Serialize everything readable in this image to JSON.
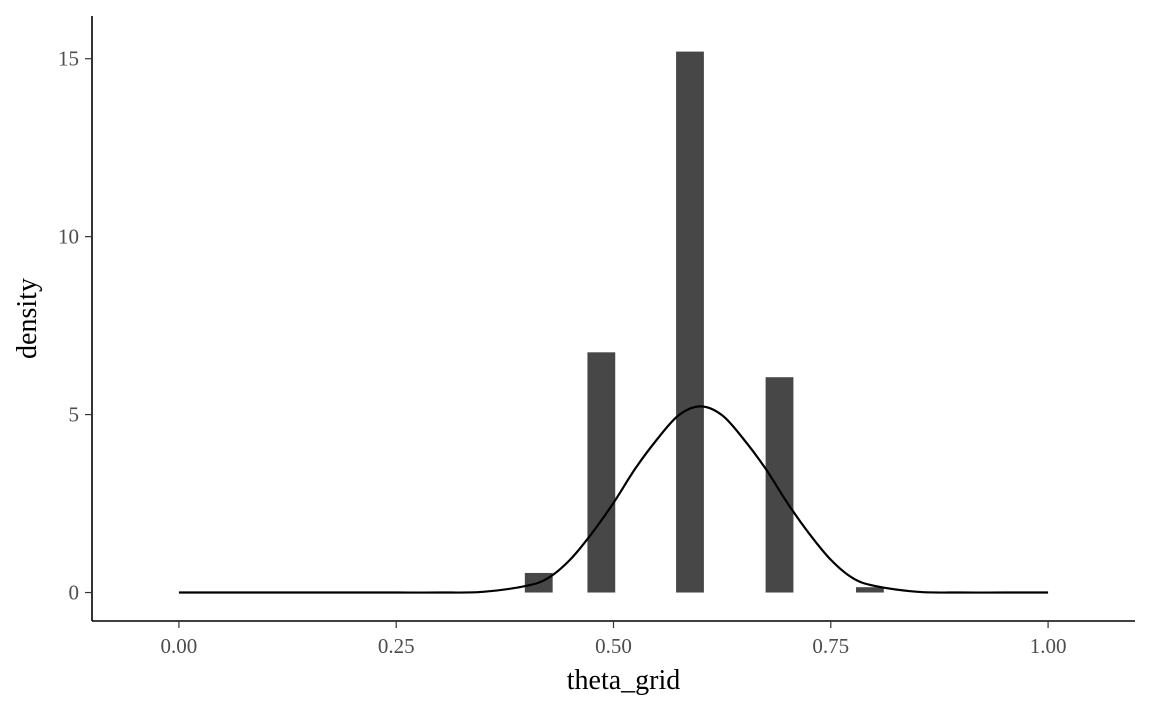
{
  "chart_data": {
    "type": "bar",
    "title": "",
    "xlabel": "theta_grid",
    "ylabel": "density",
    "xlim": [
      -0.1,
      1.1
    ],
    "ylim": [
      -0.8,
      16.2
    ],
    "x_ticks": [
      {
        "value": 0.0,
        "label": "0.00"
      },
      {
        "value": 0.25,
        "label": "0.25"
      },
      {
        "value": 0.5,
        "label": "0.50"
      },
      {
        "value": 0.75,
        "label": "0.75"
      },
      {
        "value": 1.0,
        "label": "1.00"
      }
    ],
    "y_ticks": [
      {
        "value": 0,
        "label": "0"
      },
      {
        "value": 5,
        "label": "5"
      },
      {
        "value": 10,
        "label": "10"
      },
      {
        "value": 15,
        "label": "15"
      }
    ],
    "histogram": {
      "color": "#474747",
      "bins": [
        {
          "x0": 0.398,
          "x1": 0.43,
          "density": 0.55
        },
        {
          "x0": 0.47,
          "x1": 0.502,
          "density": 6.75
        },
        {
          "x0": 0.572,
          "x1": 0.604,
          "density": 15.2
        },
        {
          "x0": 0.675,
          "x1": 0.707,
          "density": 6.05
        },
        {
          "x0": 0.779,
          "x1": 0.811,
          "density": 0.15
        }
      ]
    },
    "density_curve": {
      "type": "line",
      "color": "#000000",
      "x": [
        0.0,
        0.05,
        0.1,
        0.15,
        0.2,
        0.25,
        0.3,
        0.35,
        0.4,
        0.425,
        0.45,
        0.475,
        0.5,
        0.525,
        0.55,
        0.575,
        0.6,
        0.625,
        0.65,
        0.675,
        0.7,
        0.725,
        0.75,
        0.775,
        0.8,
        0.85,
        0.9,
        0.95,
        1.0
      ],
      "y": [
        0.0,
        0.0,
        0.0,
        0.0,
        0.0,
        0.0,
        0.0,
        0.02,
        0.19,
        0.41,
        0.92,
        1.66,
        2.52,
        3.48,
        4.3,
        4.98,
        5.23,
        4.98,
        4.3,
        3.48,
        2.52,
        1.66,
        0.92,
        0.41,
        0.19,
        0.02,
        0.0,
        0.0,
        0.0
      ]
    }
  }
}
